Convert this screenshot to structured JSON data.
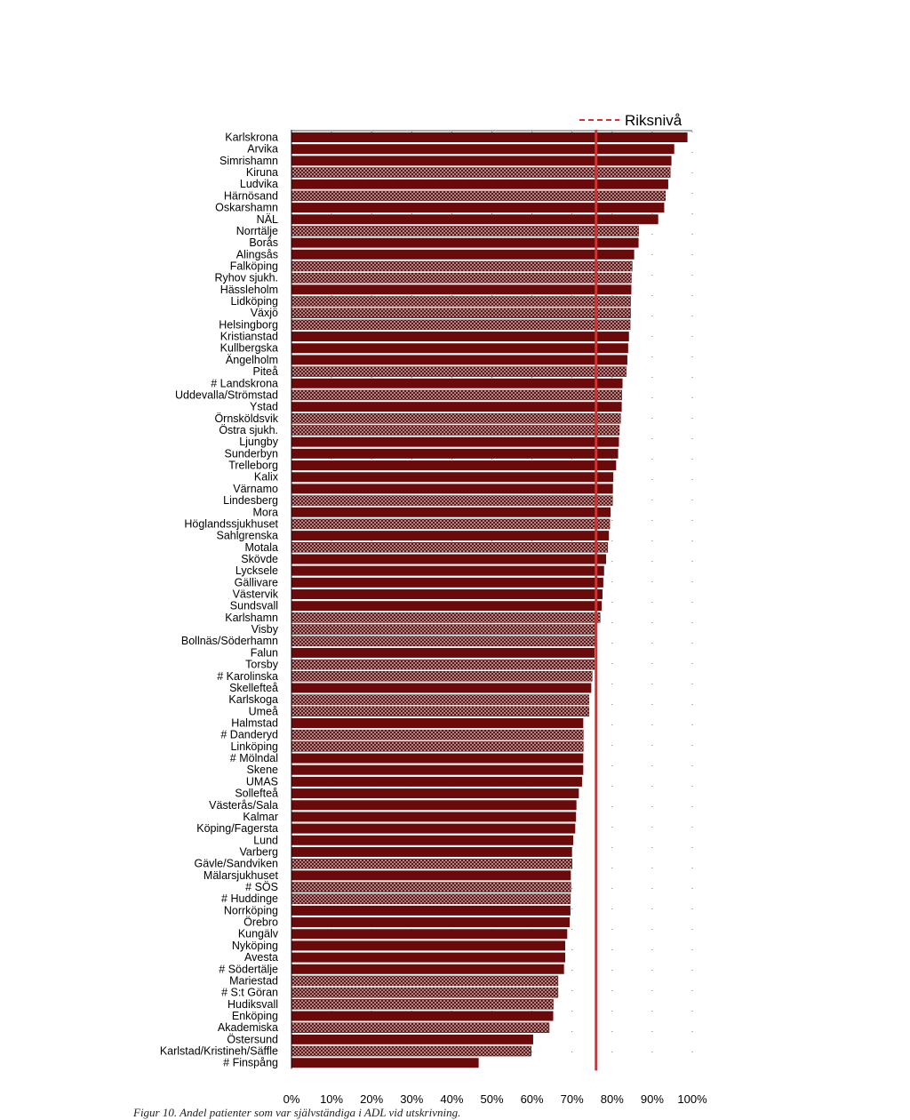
{
  "chart_data": {
    "type": "bar",
    "orientation": "horizontal",
    "legend": {
      "reference_label": "Riksnivå",
      "position": "top-right"
    },
    "reference_value": 0.76,
    "colors": {
      "bar": "#6b0a0a",
      "pattern_bg": "#c9b3b3",
      "pattern_fg": "#5a0a0a",
      "reference": "#d93030"
    },
    "xlim": [
      0,
      1
    ],
    "xticks": [
      "0%",
      "10%",
      "20%",
      "30%",
      "40%",
      "50%",
      "60%",
      "70%",
      "80%",
      "90%",
      "100%"
    ],
    "bars": [
      {
        "label": "Karlskrona",
        "value": 0.988,
        "pattern": false
      },
      {
        "label": "Arvika",
        "value": 0.955,
        "pattern": false
      },
      {
        "label": "Simrishamn",
        "value": 0.948,
        "pattern": false
      },
      {
        "label": "Kiruna",
        "value": 0.945,
        "pattern": true
      },
      {
        "label": "Ludvika",
        "value": 0.94,
        "pattern": false
      },
      {
        "label": "Härnösand",
        "value": 0.933,
        "pattern": true
      },
      {
        "label": "Oskarshamn",
        "value": 0.93,
        "pattern": false
      },
      {
        "label": "NÄL",
        "value": 0.915,
        "pattern": false
      },
      {
        "label": "Norrtälje",
        "value": 0.866,
        "pattern": true
      },
      {
        "label": "Borås",
        "value": 0.866,
        "pattern": false
      },
      {
        "label": "Alingsås",
        "value": 0.855,
        "pattern": false
      },
      {
        "label": "Falköping",
        "value": 0.85,
        "pattern": true
      },
      {
        "label": "Ryhov sjukh.",
        "value": 0.848,
        "pattern": true
      },
      {
        "label": "Hässleholm",
        "value": 0.848,
        "pattern": false
      },
      {
        "label": "Lidköping",
        "value": 0.846,
        "pattern": true
      },
      {
        "label": "Växjö",
        "value": 0.846,
        "pattern": true
      },
      {
        "label": "Helsingborg",
        "value": 0.845,
        "pattern": true
      },
      {
        "label": "Kristianstad",
        "value": 0.842,
        "pattern": false
      },
      {
        "label": "Kullbergska",
        "value": 0.84,
        "pattern": false
      },
      {
        "label": "Ängelholm",
        "value": 0.838,
        "pattern": false
      },
      {
        "label": "Piteå",
        "value": 0.835,
        "pattern": true
      },
      {
        "label": "# Landskrona",
        "value": 0.826,
        "pattern": false
      },
      {
        "label": "Uddevalla/Strömstad",
        "value": 0.824,
        "pattern": true
      },
      {
        "label": "Ystad",
        "value": 0.824,
        "pattern": false
      },
      {
        "label": "Örnsköldsvik",
        "value": 0.821,
        "pattern": true
      },
      {
        "label": "Östra sjukh.",
        "value": 0.818,
        "pattern": true
      },
      {
        "label": "Ljungby",
        "value": 0.817,
        "pattern": false
      },
      {
        "label": "Sunderbyn",
        "value": 0.815,
        "pattern": false
      },
      {
        "label": "Trelleborg",
        "value": 0.81,
        "pattern": false
      },
      {
        "label": "Kalix",
        "value": 0.803,
        "pattern": false
      },
      {
        "label": "Värnamo",
        "value": 0.802,
        "pattern": false
      },
      {
        "label": "Lindesberg",
        "value": 0.801,
        "pattern": true
      },
      {
        "label": "Mora",
        "value": 0.796,
        "pattern": false
      },
      {
        "label": "Höglandssjukhuset",
        "value": 0.794,
        "pattern": true
      },
      {
        "label": "Sahlgrenska",
        "value": 0.792,
        "pattern": false
      },
      {
        "label": "Motala",
        "value": 0.789,
        "pattern": true
      },
      {
        "label": "Skövde",
        "value": 0.785,
        "pattern": false
      },
      {
        "label": "Lycksele",
        "value": 0.78,
        "pattern": false
      },
      {
        "label": "Gällivare",
        "value": 0.778,
        "pattern": false
      },
      {
        "label": "Västervik",
        "value": 0.776,
        "pattern": false
      },
      {
        "label": "Sundsvall",
        "value": 0.774,
        "pattern": false
      },
      {
        "label": "Karlshamn",
        "value": 0.77,
        "pattern": true
      },
      {
        "label": "Visby",
        "value": 0.758,
        "pattern": true
      },
      {
        "label": "Bollnäs/Söderhamn",
        "value": 0.757,
        "pattern": true
      },
      {
        "label": "Falun",
        "value": 0.756,
        "pattern": false
      },
      {
        "label": "Torsby",
        "value": 0.756,
        "pattern": true
      },
      {
        "label": "# Karolinska",
        "value": 0.75,
        "pattern": true
      },
      {
        "label": "Skellefteå",
        "value": 0.748,
        "pattern": false
      },
      {
        "label": "Karlskoga",
        "value": 0.742,
        "pattern": true
      },
      {
        "label": "Umeå",
        "value": 0.742,
        "pattern": true
      },
      {
        "label": "Halmstad",
        "value": 0.728,
        "pattern": false
      },
      {
        "label": "# Danderyd",
        "value": 0.728,
        "pattern": true
      },
      {
        "label": "Linköping",
        "value": 0.728,
        "pattern": true
      },
      {
        "label": "# Mölndal",
        "value": 0.728,
        "pattern": false
      },
      {
        "label": "Skene",
        "value": 0.728,
        "pattern": false
      },
      {
        "label": "UMAS",
        "value": 0.725,
        "pattern": false
      },
      {
        "label": "Sollefteå",
        "value": 0.717,
        "pattern": false
      },
      {
        "label": "Västerås/Sala",
        "value": 0.711,
        "pattern": false
      },
      {
        "label": "Kalmar",
        "value": 0.71,
        "pattern": false
      },
      {
        "label": "Köping/Fagersta",
        "value": 0.708,
        "pattern": false
      },
      {
        "label": "Lund",
        "value": 0.703,
        "pattern": false
      },
      {
        "label": "Varberg",
        "value": 0.7,
        "pattern": false
      },
      {
        "label": "Gävle/Sandviken",
        "value": 0.7,
        "pattern": true
      },
      {
        "label": "Mälarsjukhuset",
        "value": 0.697,
        "pattern": false
      },
      {
        "label": "# SÖS",
        "value": 0.697,
        "pattern": true
      },
      {
        "label": "# Huddinge",
        "value": 0.696,
        "pattern": true
      },
      {
        "label": "Norrköping",
        "value": 0.696,
        "pattern": false
      },
      {
        "label": "Örebro",
        "value": 0.694,
        "pattern": false
      },
      {
        "label": "Kungälv",
        "value": 0.688,
        "pattern": false
      },
      {
        "label": "Nyköping",
        "value": 0.683,
        "pattern": false
      },
      {
        "label": "Avesta",
        "value": 0.683,
        "pattern": false
      },
      {
        "label": "# Södertälje",
        "value": 0.68,
        "pattern": false
      },
      {
        "label": "Mariestad",
        "value": 0.665,
        "pattern": true
      },
      {
        "label": "# S:t Göran",
        "value": 0.665,
        "pattern": true
      },
      {
        "label": "Hudiksvall",
        "value": 0.653,
        "pattern": true
      },
      {
        "label": "Enköping",
        "value": 0.653,
        "pattern": false
      },
      {
        "label": "Akademiska",
        "value": 0.643,
        "pattern": true
      },
      {
        "label": "Östersund",
        "value": 0.603,
        "pattern": false
      },
      {
        "label": "Karlstad/Kristineh/Säffle",
        "value": 0.598,
        "pattern": true
      },
      {
        "label": "# Finspång",
        "value": 0.467,
        "pattern": false
      }
    ]
  },
  "caption": "Figur 10. Andel patienter som var självständiga i ADL vid utskrivning."
}
